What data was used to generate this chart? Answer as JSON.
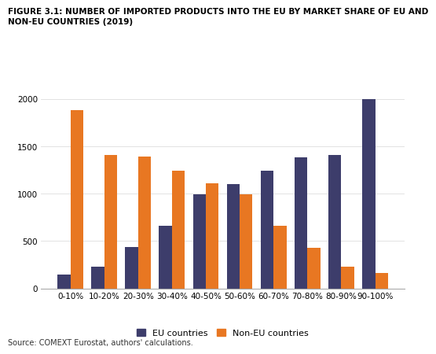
{
  "title_line1": "FIGURE 3.1: NUMBER OF IMPORTED PRODUCTS INTO THE EU BY MARKET SHARE OF EU AND",
  "title_line2": "NON-EU COUNTRIES (2019)",
  "categories": [
    "0-10%",
    "10-20%",
    "20-30%",
    "30-40%",
    "40-50%",
    "50-60%",
    "60-70%",
    "70-80%",
    "80-90%",
    "90-100%"
  ],
  "eu_values": [
    150,
    230,
    440,
    660,
    990,
    1100,
    1240,
    1380,
    1410,
    2000
  ],
  "noneu_values": [
    1880,
    1410,
    1390,
    1240,
    1110,
    990,
    660,
    430,
    230,
    160
  ],
  "eu_color": "#3d3d6b",
  "noneu_color": "#e87722",
  "ylim": [
    0,
    2100
  ],
  "yticks": [
    0,
    500,
    1000,
    1500,
    2000
  ],
  "legend_eu": "EU countries",
  "legend_noneu": "Non-EU countries",
  "source": "Source: COMEXT Eurostat, authors' calculations.",
  "bar_width": 0.38,
  "background_color": "#ffffff",
  "title_fontsize": 7.5,
  "axis_fontsize": 7.5,
  "legend_fontsize": 8.0
}
